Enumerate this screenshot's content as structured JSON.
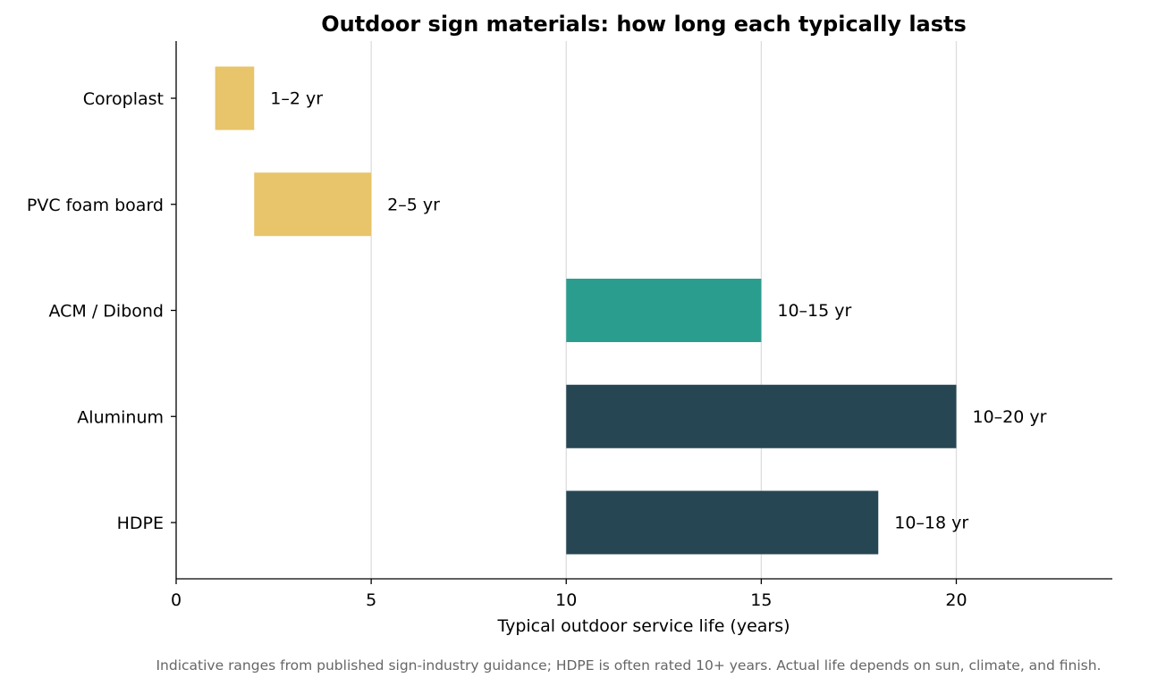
{
  "chart_data": {
    "type": "bar",
    "orientation": "horizontal",
    "title": "Outdoor sign materials: how long each typically lasts",
    "xlabel": "Typical outdoor service life (years)",
    "ylabel": "",
    "xlim": [
      0,
      24
    ],
    "xticks": [
      0,
      5,
      10,
      15,
      20
    ],
    "xtick_labels": [
      "0",
      "5",
      "10",
      "15",
      "20"
    ],
    "grid": "vertical",
    "categories": [
      "Coroplast",
      "PVC foam board",
      "ACM / Dibond",
      "Aluminum",
      "HDPE"
    ],
    "ranges": [
      {
        "start": 1,
        "end": 2,
        "label": "1–2 yr",
        "color": "#e8c46a"
      },
      {
        "start": 2,
        "end": 5,
        "label": "2–5 yr",
        "color": "#e8c46a"
      },
      {
        "start": 10,
        "end": 15,
        "label": "10–15 yr",
        "color": "#2a9d8f"
      },
      {
        "start": 10,
        "end": 20,
        "label": "10–20 yr",
        "color": "#264653"
      },
      {
        "start": 10,
        "end": 18,
        "label": "10–18 yr",
        "color": "#264653"
      }
    ],
    "footnote": "Indicative ranges from published sign-industry guidance; HDPE is often rated 10+ years. Actual life depends on sun, climate, and finish."
  }
}
